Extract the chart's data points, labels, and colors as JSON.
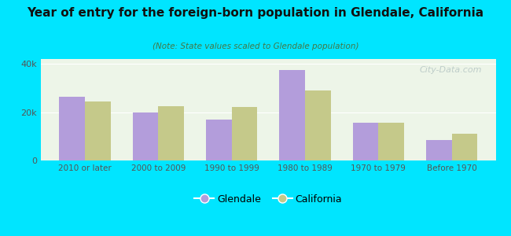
{
  "title": "Year of entry for the foreign-born population in Glendale, California",
  "subtitle": "(Note: State values scaled to Glendale population)",
  "categories": [
    "2010 or later",
    "2000 to 2009",
    "1990 to 1999",
    "1980 to 1989",
    "1970 to 1979",
    "Before 1970"
  ],
  "glendale_values": [
    26500,
    20000,
    17000,
    37500,
    15500,
    8500
  ],
  "california_values": [
    24500,
    22500,
    22000,
    29000,
    15500,
    11000
  ],
  "glendale_color": "#b39ddb",
  "california_color": "#c5c98a",
  "background_color": "#00e5ff",
  "plot_bg_color": "#edf5e8",
  "ylim": [
    0,
    42000
  ],
  "ytick_labels": [
    "0",
    "20k",
    "40k"
  ],
  "bar_width": 0.35,
  "legend_glendale": "Glendale",
  "legend_california": "California",
  "watermark": "City-Data.com"
}
